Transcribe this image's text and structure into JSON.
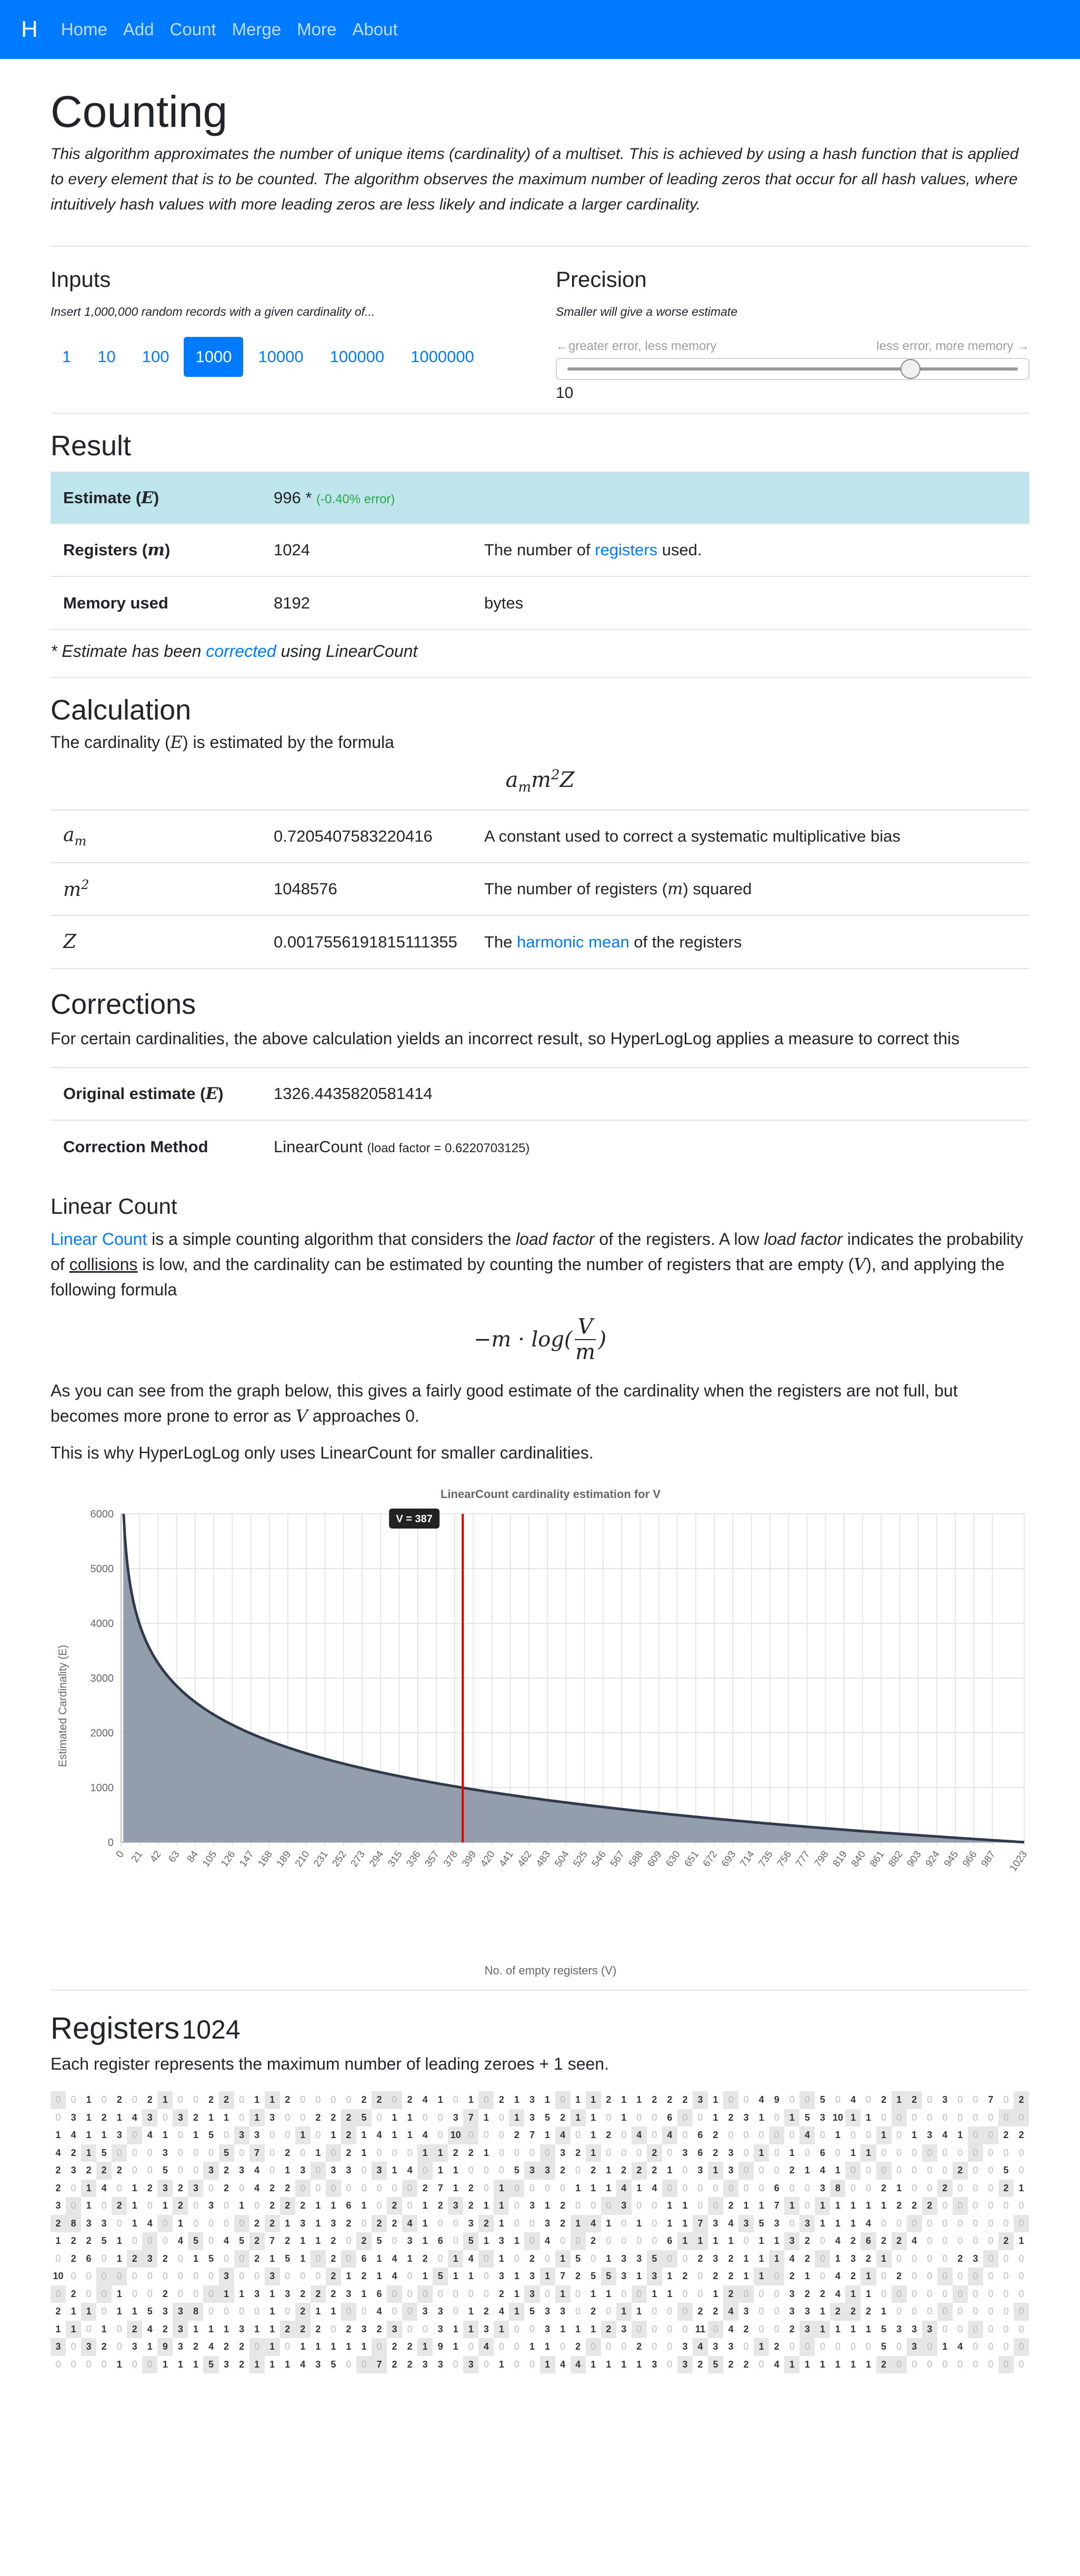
{
  "nav": {
    "brand": "H",
    "links": [
      "Home",
      "Add",
      "Count",
      "Merge",
      "More",
      "About"
    ]
  },
  "header": {
    "title": "Counting",
    "lead": "This algorithm approximates the number of unique items (cardinality) of a multiset. This is achieved by using a hash function that is applied to every element that is to be counted. The algorithm observes the maximum number of leading zeros that occur for all hash values, where intuitively hash values with more leading zeros are less likely and indicate a larger cardinality."
  },
  "inputs": {
    "title": "Inputs",
    "subtitle": "Insert 1,000,000 random records with a given cardinality of...",
    "options": [
      "1",
      "10",
      "100",
      "1000",
      "10000",
      "100000",
      "1000000"
    ],
    "selected": "1000"
  },
  "precision": {
    "title": "Precision",
    "subtitle": "Smaller will give a worse estimate",
    "left_label": "←greater error, less memory",
    "right_label": "less error, more memory →",
    "value": "10",
    "slider_fraction": 0.77
  },
  "result": {
    "title": "Result",
    "estimate_label": "Estimate (",
    "estimate_var": "E",
    "estimate_value": "996 *",
    "estimate_error": "(-0.40% error)",
    "registers_label": "Registers (",
    "registers_var": "m",
    "registers_value": "1024",
    "registers_desc_pre": "The number of ",
    "registers_desc_link": "registers",
    "registers_desc_post": " used.",
    "memory_label": "Memory used",
    "memory_value": "8192",
    "memory_unit": "bytes",
    "note_pre": "* Estimate has been ",
    "note_link": "corrected",
    "note_post": " using LinearCount"
  },
  "calculation": {
    "title": "Calculation",
    "intro_pre": "The cardinality (",
    "intro_var": "E",
    "intro_post": ") is estimated by the formula",
    "formula": "a m m 2 Z",
    "rows": [
      {
        "symbol": "a",
        "sub": "m",
        "value": "0.7205407583220416",
        "desc": "A constant used to correct a systematic multiplicative bias"
      },
      {
        "symbol": "m",
        "sup": "2",
        "value": "1048576",
        "desc_pre": "The number of registers (",
        "desc_var": "m",
        "desc_post": ") squared"
      },
      {
        "symbol": "Z",
        "value": "0.0017556191815111355",
        "desc_pre": "The ",
        "desc_link": "harmonic mean",
        "desc_post": " of the registers"
      }
    ]
  },
  "corrections": {
    "title": "Corrections",
    "intro": "For certain cardinalities, the above calculation yields an incorrect result, so HyperLogLog applies a measure to correct this",
    "orig_label": "Original estimate (",
    "orig_var": "E",
    "orig_value": "1326.4435820581414",
    "method_label": "Correction Method",
    "method_value": "LinearCount",
    "method_note": "(load factor = 0.6220703125)"
  },
  "linear_count": {
    "title": "Linear Count",
    "p1_link": "Linear Count",
    "p1_a": " is a simple counting algorithm that considers the ",
    "p1_em1": "load factor",
    "p1_b": " of the registers. A low ",
    "p1_em2": "load factor",
    "p1_c": " indicates the probability of ",
    "p1_u": "collisions",
    "p1_d": " is low, and the cardinality can be estimated by counting the number of registers that are empty (",
    "p1_var": "V",
    "p1_e": "), and applying the following formula",
    "formula_left": "−m · log(",
    "formula_num": "V",
    "formula_den": "m",
    "formula_right": ")",
    "p2_a": "As you can see from the graph below, this gives a fairly good estimate of the cardinality when the registers are not full, but becomes more prone to error as ",
    "p2_var": "V",
    "p2_b": " approaches 0.",
    "p3": "This is why HyperLogLog only uses LinearCount for smaller cardinalities."
  },
  "chart_data": {
    "type": "area",
    "title": "LinearCount cardinality estimation for V",
    "xlabel": "No. of empty registers (V)",
    "ylabel": "Estimated Cardinality (E)",
    "ylim": [
      0,
      6000
    ],
    "yticks": [
      "0",
      "1000",
      "2000",
      "3000",
      "4000",
      "5000",
      "6000"
    ],
    "xticks": [
      "0",
      "21",
      "42",
      "63",
      "84",
      "105",
      "126",
      "147",
      "168",
      "189",
      "210",
      "231",
      "252",
      "273",
      "294",
      "315",
      "336",
      "357",
      "378",
      "399",
      "420",
      "441",
      "462",
      "483",
      "504",
      "525",
      "546",
      "567",
      "588",
      "609",
      "630",
      "651",
      "672",
      "693",
      "714",
      "735",
      "756",
      "777",
      "798",
      "819",
      "840",
      "861",
      "882",
      "903",
      "924",
      "945",
      "966",
      "987",
      "1023"
    ],
    "x_min": 0,
    "x_max": 1023,
    "m": 1024,
    "series": [
      {
        "formula": "-m*log(V/m)"
      }
    ],
    "marker_value": 387,
    "marker_label": "V = 387",
    "grid": true,
    "fill_color": "#939dab",
    "line_color": "#2f3b4c",
    "marker_color": "#e00000"
  },
  "registers": {
    "title": "Registers",
    "count": "1024",
    "desc": "Each register represents the maximum number of leading zeroes + 1 seen.",
    "rows": [
      "0,0,1,0,2,0,2,1,0,0,2,2,0,1,1,2,0,0,0,0,2,2,0,2,4,1,0,1,0,2,1,3,1,0,1,1,2,1,1,2,2,2,3,1,0,0,4,9,0,0,5,0,4,0,2,1,2,0,3,0,0,7,0,2",
      "0,3,1,2,1,4,3,0,3,2,1,1,0,1,3,0,0,2,2,2,5,0,1,1,0,0,3,7,1,0,1,3,5,2,1,1,0,1,0,0,6,0,0,1,2,3,1,0,1,5,3,10,1,1,0,0,0,0,0,0,0,0,0,0",
      "1,4,1,1,3,0,4,1,0,1,5,0,3,3,0,0,1,0,1,2,1,4,1,1,4,0,10,0,0,0,2,7,1,4,0,1,2,0,4,0,4,0,6,2,0,0,0,0,0,4,0,1,0,0,1,0,1,3,4,1,0,0,2,2",
      "4,2,1,5,0,0,0,3,0,0,0,5,0,7,0,2,0,1,0,2,1,0,0,0,1,1,2,2,1,0,0,0,0,3,2,1,0,0,0,2,0,3,6,2,3,0,1,0,1,0,6,0,1,1,0,0,0,0,0,0,0,0,0,0",
      "2,3,2,2,2,0,0,5,0,0,3,2,3,4,0,1,3,0,3,3,0,3,1,4,0,1,1,0,0,0,5,3,3,2,0,2,1,2,2,2,1,0,3,1,3,0,0,0,2,1,4,1,0,0,0,0,0,0,0,2,0,0,5,0",
      "2,0,1,4,0,1,2,3,2,3,0,2,0,4,2,2,0,0,0,0,0,0,0,0,2,7,1,2,0,1,0,0,0,0,1,1,1,4,1,4,0,0,0,0,0,0,0,6,0,0,3,8,0,0,2,1,0,0,2,0,0,0,2,1",
      "3,0,1,0,2,1,0,1,2,0,3,0,1,0,2,2,2,1,1,6,1,0,2,0,1,2,3,2,1,1,0,3,1,2,0,0,0,3,0,0,1,1,0,0,2,1,1,7,1,0,1,1,1,1,1,2,2,2,0,0,0,0,0,0",
      "2,8,3,3,0,1,4,0,1,0,0,0,0,2,2,1,3,1,3,2,0,2,2,4,1,0,0,3,2,1,0,0,3,2,1,4,1,0,1,0,1,1,7,3,4,3,5,3,0,3,1,1,1,4,0,0,0,0,0,0,0,0,0,0",
      "1,2,2,5,1,0,0,0,4,5,0,4,5,2,7,2,1,1,2,0,2,5,0,3,1,6,0,5,1,3,1,0,4,0,0,2,0,0,0,0,6,1,1,1,1,0,1,1,3,2,0,4,2,6,2,2,4,0,0,0,0,0,2,1",
      "0,2,6,0,1,2,3,2,0,1,5,0,0,2,1,5,1,0,2,0,6,1,4,1,2,0,1,4,0,1,0,2,0,1,5,0,1,3,3,5,0,0,2,3,2,1,1,1,4,2,0,1,3,2,1,0,0,0,0,2,3,0,0,0",
      "10,0,0,0,0,0,0,0,0,0,0,3,0,0,3,0,0,0,2,1,2,1,4,0,1,5,1,1,0,3,1,3,1,7,2,5,5,3,1,3,1,2,0,2,2,1,1,0,2,1,0,4,2,1,0,2,0,0,0,0,0,0,0,0",
      "0,2,0,0,1,0,0,2,0,0,0,1,1,3,1,3,2,2,2,3,1,6,0,0,0,0,0,0,0,2,1,3,0,1,0,1,1,0,0,1,1,0,0,1,2,0,0,0,3,2,2,4,1,1,0,0,0,0,0,0,0,0,0,0",
      "2,1,1,0,1,1,5,3,3,8,0,0,0,0,1,0,2,1,1,0,0,4,0,0,3,3,0,1,2,4,1,5,3,3,0,2,0,1,1,0,0,0,2,2,4,3,0,0,3,3,1,2,2,2,1,0,0,0,0,0,0,0,0,0",
      "1,1,0,1,0,2,4,2,3,1,1,1,3,1,1,2,2,2,0,2,3,2,3,0,0,3,1,1,3,1,0,0,3,1,1,1,2,3,0,0,0,0,11,0,4,2,0,0,2,3,1,1,1,1,5,3,3,3,0,0,0,0,0,0",
      "3,0,3,2,0,3,1,9,3,2,4,2,2,0,1,0,1,1,1,1,1,0,2,2,1,9,1,0,4,0,0,1,1,0,2,0,0,0,2,0,0,3,4,3,3,0,1,2,0,0,0,0,0,0,5,0,3,0,1,4,0,0,0,0",
      "0,0,0,0,1,0,0,1,1,1,5,3,2,1,1,1,4,3,5,0,0,7,2,2,3,3,0,3,0,1,0,0,1,4,4,1,1,1,1,3,0,3,2,5,2,2,0,4,1,1,1,1,1,1,2,0,0,0,0,0,0,0,0,0"
    ]
  }
}
